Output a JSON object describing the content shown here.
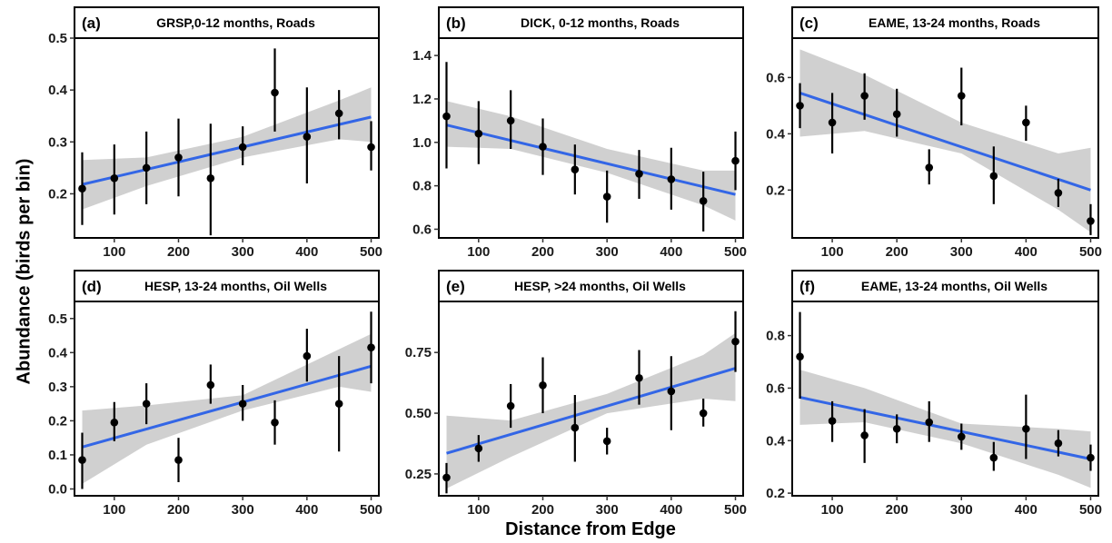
{
  "figure": {
    "ylabel": "Abundance (birds per bin)",
    "xlabel": "Distance from Edge",
    "colors": {
      "fit_line": "#3366e6",
      "ribbon": "#c8c8c8",
      "points": "#000000"
    }
  },
  "chart_data": [
    {
      "type": "scatter",
      "panel": "(a)",
      "title": "GRSP,0-12 months, Roads",
      "x": [
        50,
        100,
        150,
        200,
        250,
        300,
        350,
        400,
        450,
        500
      ],
      "y": [
        0.21,
        0.23,
        0.25,
        0.27,
        0.23,
        0.29,
        0.395,
        0.31,
        0.355,
        0.29
      ],
      "y_low": [
        0.14,
        0.16,
        0.18,
        0.195,
        0.12,
        0.255,
        0.32,
        0.22,
        0.305,
        0.245
      ],
      "y_high": [
        0.28,
        0.295,
        0.32,
        0.345,
        0.335,
        0.33,
        0.48,
        0.405,
        0.4,
        0.34
      ],
      "fit": {
        "x": [
          50,
          500
        ],
        "y": [
          0.218,
          0.348
        ]
      },
      "band": {
        "x": [
          50,
          150,
          300,
          450,
          500
        ],
        "low": [
          0.17,
          0.215,
          0.27,
          0.305,
          0.3
        ],
        "high": [
          0.265,
          0.27,
          0.31,
          0.38,
          0.405
        ]
      },
      "xlim": [
        38,
        512
      ],
      "ylim": [
        0.115,
        0.5
      ],
      "xticks": [
        100,
        200,
        300,
        400,
        500
      ],
      "yticks": [
        0.2,
        0.3,
        0.4,
        0.5
      ],
      "ytick_labels": [
        "0.2",
        "0.3",
        "0.4",
        "0.5"
      ],
      "grid": false,
      "legend": "none"
    },
    {
      "type": "scatter",
      "panel": "(b)",
      "title": "DICK, 0-12 months, Roads",
      "x": [
        50,
        100,
        150,
        200,
        250,
        300,
        350,
        400,
        450,
        500
      ],
      "y": [
        1.12,
        1.04,
        1.1,
        0.98,
        0.875,
        0.75,
        0.855,
        0.83,
        0.73,
        0.915
      ],
      "y_low": [
        0.88,
        0.9,
        0.97,
        0.85,
        0.76,
        0.63,
        0.74,
        0.69,
        0.59,
        0.78
      ],
      "y_high": [
        1.37,
        1.19,
        1.24,
        1.11,
        0.99,
        0.87,
        0.965,
        0.975,
        0.865,
        1.05
      ],
      "fit": {
        "x": [
          50,
          500
        ],
        "y": [
          1.08,
          0.76
        ]
      },
      "band": {
        "x": [
          50,
          150,
          300,
          450,
          500
        ],
        "low": [
          0.98,
          0.97,
          0.86,
          0.71,
          0.64
        ],
        "high": [
          1.19,
          1.12,
          0.97,
          0.87,
          0.87
        ]
      },
      "xlim": [
        38,
        512
      ],
      "ylim": [
        0.56,
        1.48
      ],
      "xticks": [
        100,
        200,
        300,
        400,
        500
      ],
      "yticks": [
        0.6,
        0.8,
        1.0,
        1.2,
        1.4
      ],
      "ytick_labels": [
        "0.6",
        "0.8",
        "1.0",
        "1.2",
        "1.4"
      ],
      "grid": false,
      "legend": "none"
    },
    {
      "type": "scatter",
      "panel": "(c)",
      "title": "EAME, 13-24 months, Roads",
      "x": [
        50,
        100,
        150,
        200,
        250,
        300,
        350,
        400,
        450,
        500
      ],
      "y": [
        0.5,
        0.44,
        0.535,
        0.47,
        0.28,
        0.535,
        0.25,
        0.44,
        0.19,
        0.09
      ],
      "y_low": [
        0.42,
        0.33,
        0.45,
        0.39,
        0.22,
        0.43,
        0.15,
        0.375,
        0.14,
        0.04
      ],
      "y_high": [
        0.58,
        0.545,
        0.615,
        0.56,
        0.345,
        0.635,
        0.355,
        0.5,
        0.24,
        0.15
      ],
      "fit": {
        "x": [
          50,
          500
        ],
        "y": [
          0.545,
          0.2
        ]
      },
      "band": {
        "x": [
          50,
          150,
          300,
          450,
          500
        ],
        "low": [
          0.39,
          0.41,
          0.33,
          0.13,
          0.05
        ],
        "high": [
          0.7,
          0.61,
          0.44,
          0.33,
          0.35
        ]
      },
      "xlim": [
        38,
        512
      ],
      "ylim": [
        0.03,
        0.74
      ],
      "xticks": [
        100,
        200,
        300,
        400,
        500
      ],
      "yticks": [
        0.2,
        0.4,
        0.6
      ],
      "ytick_labels": [
        "0.2",
        "0.4",
        "0.6"
      ],
      "grid": false,
      "legend": "none"
    },
    {
      "type": "scatter",
      "panel": "(d)",
      "title": "HESP, 13-24 months, Oil Wells",
      "x": [
        50,
        100,
        150,
        200,
        250,
        300,
        350,
        400,
        450,
        500
      ],
      "y": [
        0.085,
        0.195,
        0.25,
        0.085,
        0.305,
        0.25,
        0.195,
        0.39,
        0.25,
        0.415
      ],
      "y_low": [
        0.0,
        0.14,
        0.19,
        0.02,
        0.25,
        0.2,
        0.13,
        0.315,
        0.11,
        0.31
      ],
      "y_high": [
        0.165,
        0.255,
        0.31,
        0.15,
        0.365,
        0.305,
        0.26,
        0.47,
        0.39,
        0.52
      ],
      "fit": {
        "x": [
          50,
          500
        ],
        "y": [
          0.123,
          0.36
        ]
      },
      "band": {
        "x": [
          50,
          150,
          300,
          450,
          500
        ],
        "low": [
          0.015,
          0.13,
          0.23,
          0.3,
          0.285
        ],
        "high": [
          0.23,
          0.245,
          0.275,
          0.41,
          0.455
        ]
      },
      "xlim": [
        38,
        512
      ],
      "ylim": [
        -0.02,
        0.55
      ],
      "xticks": [
        100,
        200,
        300,
        400,
        500
      ],
      "yticks": [
        0.0,
        0.1,
        0.2,
        0.3,
        0.4,
        0.5
      ],
      "ytick_labels": [
        "0.0",
        "0.1",
        "0.2",
        "0.3",
        "0.4",
        "0.5"
      ],
      "grid": false,
      "legend": "none"
    },
    {
      "type": "scatter",
      "panel": "(e)",
      "title": "HESP, >24 months, Oil Wells",
      "x": [
        50,
        100,
        150,
        200,
        250,
        300,
        350,
        400,
        450,
        500
      ],
      "y": [
        0.235,
        0.355,
        0.53,
        0.615,
        0.44,
        0.385,
        0.645,
        0.59,
        0.5,
        0.795
      ],
      "y_low": [
        0.17,
        0.3,
        0.44,
        0.5,
        0.3,
        0.33,
        0.535,
        0.43,
        0.445,
        0.67
      ],
      "y_high": [
        0.295,
        0.41,
        0.62,
        0.73,
        0.575,
        0.44,
        0.76,
        0.735,
        0.56,
        0.92
      ],
      "fit": {
        "x": [
          50,
          500
        ],
        "y": [
          0.335,
          0.685
        ]
      },
      "band": {
        "x": [
          50,
          150,
          300,
          450,
          500
        ],
        "low": [
          0.19,
          0.32,
          0.5,
          0.56,
          0.55
        ],
        "high": [
          0.49,
          0.47,
          0.58,
          0.74,
          0.83
        ]
      },
      "xlim": [
        38,
        512
      ],
      "ylim": [
        0.16,
        0.96
      ],
      "xticks": [
        100,
        200,
        300,
        400,
        500
      ],
      "yticks": [
        0.25,
        0.5,
        0.75
      ],
      "ytick_labels": [
        "0.25",
        "0.50",
        "0.75"
      ],
      "grid": false,
      "legend": "none"
    },
    {
      "type": "scatter",
      "panel": "(f)",
      "title": "EAME, 13-24 months, Oil Wells",
      "x": [
        50,
        100,
        150,
        200,
        250,
        300,
        350,
        400,
        450,
        500
      ],
      "y": [
        0.72,
        0.475,
        0.42,
        0.445,
        0.47,
        0.415,
        0.335,
        0.445,
        0.39,
        0.335
      ],
      "y_low": [
        0.56,
        0.395,
        0.315,
        0.39,
        0.395,
        0.365,
        0.285,
        0.33,
        0.34,
        0.285
      ],
      "y_high": [
        0.89,
        0.55,
        0.52,
        0.5,
        0.55,
        0.465,
        0.395,
        0.575,
        0.44,
        0.385
      ],
      "fit": {
        "x": [
          50,
          500
        ],
        "y": [
          0.565,
          0.33
        ]
      },
      "band": {
        "x": [
          50,
          150,
          300,
          450,
          500
        ],
        "low": [
          0.46,
          0.47,
          0.39,
          0.27,
          0.22
        ],
        "high": [
          0.67,
          0.6,
          0.465,
          0.445,
          0.435
        ]
      },
      "xlim": [
        38,
        512
      ],
      "ylim": [
        0.19,
        0.93
      ],
      "xticks": [
        100,
        200,
        300,
        400,
        500
      ],
      "yticks": [
        0.2,
        0.4,
        0.6,
        0.8
      ],
      "ytick_labels": [
        "0.2",
        "0.4",
        "0.6",
        "0.8"
      ],
      "grid": false,
      "legend": "none"
    }
  ]
}
